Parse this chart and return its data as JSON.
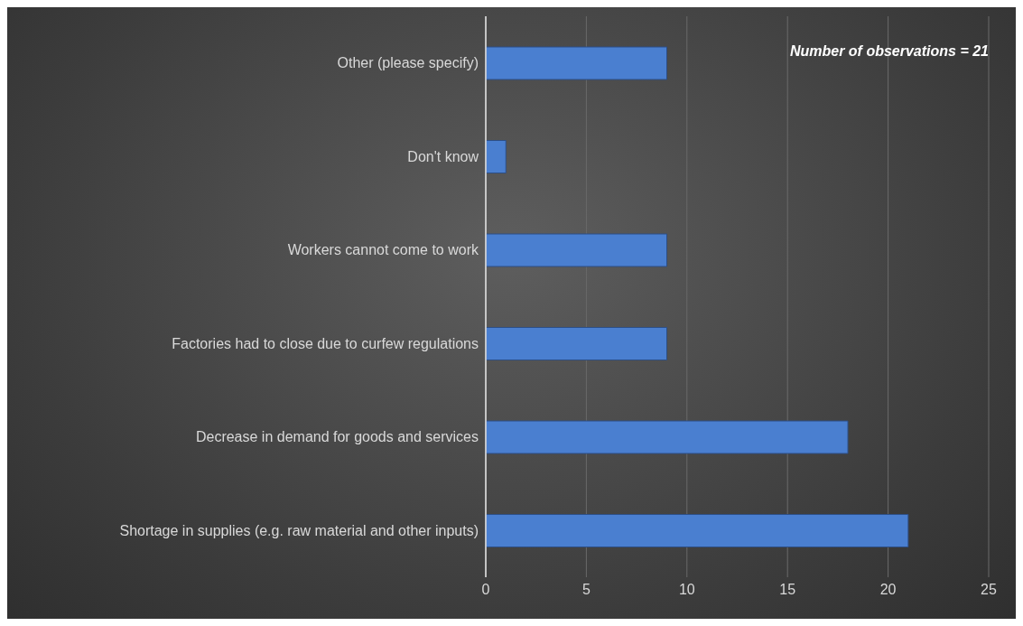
{
  "chart_data": {
    "type": "bar",
    "orientation": "horizontal",
    "categories": [
      "Other (please specify)",
      "Don't know",
      "Workers cannot come to work",
      "Factories had to close due to curfew regulations",
      "Decrease in demand for goods and services",
      "Shortage in supplies (e.g. raw material and other inputs)"
    ],
    "values": [
      9,
      1,
      9,
      9,
      18,
      21
    ],
    "color": "#4a7fd0",
    "xlim": [
      0,
      25
    ],
    "xticks": [
      0,
      5,
      10,
      15,
      20,
      25
    ],
    "grid": "x",
    "annotations": [
      "Number of observations = 21"
    ]
  }
}
